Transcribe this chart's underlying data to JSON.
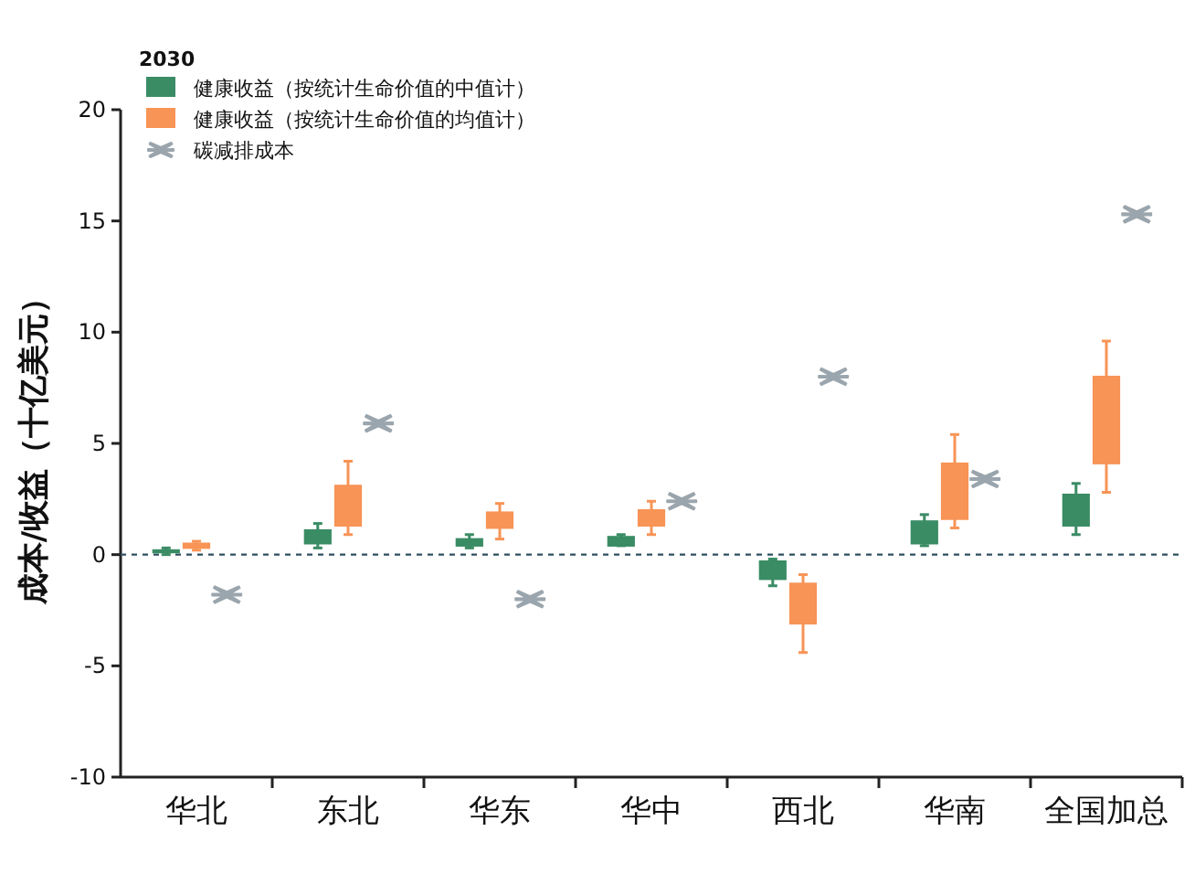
{
  "chart_data": {
    "type": "candlestick",
    "legend_title": "2030",
    "ylabel": "成本/收益（十亿美元）",
    "categories": [
      "华北",
      "东北",
      "华东",
      "华中",
      "西北",
      "华南",
      "全国加总"
    ],
    "ylim": [
      -10,
      20
    ],
    "yticks": [
      -10,
      -5,
      0,
      5,
      10,
      15,
      20
    ],
    "legend": "top left",
    "ref_lines": [
      {
        "axis": "y",
        "value": 0,
        "color": "#2f4f5f",
        "line_style": "dotted"
      }
    ],
    "series": [
      {
        "name": "健康收益（按统计生命价值的中值计）",
        "color": "#3a8c65",
        "ohlc": [
          [
            0.1,
            0.3,
            0.0,
            0.2
          ],
          [
            0.5,
            1.4,
            0.3,
            1.1
          ],
          [
            0.4,
            0.9,
            0.3,
            0.7
          ],
          [
            0.4,
            0.9,
            0.4,
            0.8
          ],
          [
            -1.1,
            -0.2,
            -1.4,
            -0.3
          ],
          [
            0.5,
            1.8,
            0.4,
            1.5
          ],
          [
            1.3,
            3.2,
            0.9,
            2.7
          ]
        ]
      },
      {
        "name": "健康收益（按统计生命价值的均值计）",
        "color": "#f79456",
        "ohlc": [
          [
            0.3,
            0.6,
            0.2,
            0.5
          ],
          [
            1.3,
            4.2,
            0.9,
            3.1
          ],
          [
            1.2,
            2.3,
            0.7,
            1.9
          ],
          [
            1.3,
            2.4,
            0.9,
            2.0
          ],
          [
            -3.1,
            -0.9,
            -4.4,
            -1.3
          ],
          [
            1.6,
            5.4,
            1.2,
            4.1
          ],
          [
            4.1,
            9.6,
            2.8,
            8.0
          ]
        ]
      },
      {
        "name": "碳减排成本",
        "type": "scatter",
        "marker": "cross",
        "color": "#9aa5ad",
        "values": [
          -1.8,
          5.9,
          -2.0,
          2.4,
          8.0,
          3.4,
          15.3
        ]
      }
    ]
  }
}
